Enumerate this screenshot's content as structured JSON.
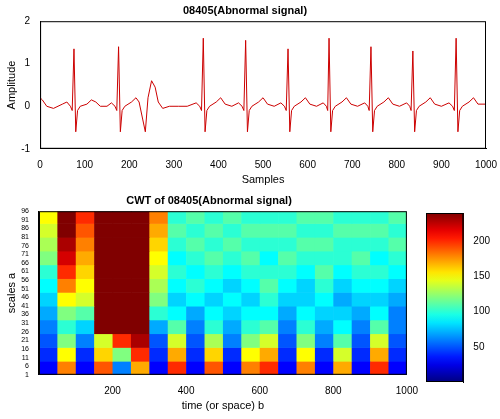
{
  "chart_data": [
    {
      "type": "line",
      "title": "08405(Abnormal signal)",
      "xlabel": "Samples",
      "ylabel": "Amplitude",
      "color": "#cc0000",
      "grid": false,
      "xlim": [
        0,
        1000
      ],
      "xticks": [
        0,
        100,
        200,
        300,
        400,
        500,
        600,
        700,
        800,
        900,
        1000
      ],
      "ylim": [
        -1,
        2
      ],
      "yticks": [
        -1,
        0,
        1,
        2
      ],
      "x": [
        0,
        5,
        15,
        30,
        50,
        60,
        68,
        72,
        76,
        80,
        84,
        90,
        105,
        115,
        125,
        135,
        150,
        160,
        168,
        172,
        176,
        180,
        184,
        190,
        205,
        215,
        222,
        230,
        236,
        242,
        250,
        258,
        265,
        275,
        290,
        310,
        330,
        350,
        358,
        362,
        366,
        370,
        374,
        380,
        395,
        405,
        415,
        430,
        445,
        453,
        457,
        461,
        465,
        469,
        475,
        490,
        500,
        510,
        525,
        540,
        548,
        552,
        556,
        560,
        564,
        570,
        585,
        595,
        605,
        620,
        635,
        642,
        645,
        648,
        652,
        656,
        662,
        677,
        687,
        697,
        712,
        728,
        735,
        738,
        742,
        746,
        750,
        756,
        771,
        781,
        791,
        806,
        822,
        829,
        832,
        836,
        840,
        844,
        850,
        865,
        875,
        885,
        900,
        917,
        925,
        929,
        933,
        937,
        941,
        947,
        962,
        972,
        982,
        1000
      ],
      "values": [
        0.2,
        0.15,
        0.0,
        -0.05,
        0.05,
        0.1,
        0.0,
        -0.1,
        1.35,
        -0.6,
        -0.1,
        0.0,
        0.05,
        0.15,
        0.1,
        0.0,
        0.0,
        0.08,
        0.0,
        -0.1,
        1.4,
        -0.6,
        -0.1,
        0.0,
        0.1,
        0.2,
        0.1,
        -0.3,
        -0.6,
        0.2,
        0.6,
        0.45,
        0.1,
        -0.05,
        0.0,
        0.0,
        0.0,
        0.08,
        0.0,
        -0.1,
        1.6,
        -0.6,
        -0.1,
        0.0,
        0.1,
        0.2,
        0.05,
        0.0,
        0.08,
        0.0,
        -0.1,
        1.55,
        -0.6,
        -0.1,
        0.0,
        0.1,
        0.2,
        0.05,
        0.0,
        0.08,
        0.0,
        -0.1,
        1.35,
        -0.6,
        -0.1,
        0.0,
        0.1,
        0.2,
        0.05,
        0.0,
        0.08,
        0.0,
        -0.1,
        1.6,
        -0.6,
        -0.1,
        0.0,
        0.1,
        0.2,
        0.05,
        0.0,
        0.08,
        0.0,
        -0.1,
        1.4,
        -0.6,
        -0.1,
        0.0,
        0.1,
        0.2,
        0.05,
        0.0,
        0.08,
        0.0,
        -0.1,
        1.3,
        -0.6,
        -0.1,
        0.0,
        0.1,
        0.2,
        0.05,
        0.0,
        0.08,
        0.0,
        -0.1,
        1.6,
        -0.6,
        -0.1,
        0.0,
        0.1,
        0.2,
        0.05,
        0.05
      ]
    },
    {
      "type": "heatmap",
      "title": "CWT of 08405(Abnormal signal)",
      "xlabel": "time (or space) b",
      "ylabel": "scales a",
      "xlim": [
        0,
        1000
      ],
      "xticks": [
        200,
        400,
        600,
        800,
        1000
      ],
      "ylim": [
        1,
        96
      ],
      "yticks": [
        1,
        6,
        11,
        16,
        21,
        26,
        31,
        36,
        41,
        46,
        51,
        56,
        61,
        66,
        71,
        76,
        81,
        86,
        91,
        96
      ],
      "x_edges": [
        0,
        50,
        100,
        150,
        200,
        250,
        300,
        350,
        400,
        450,
        500,
        550,
        600,
        650,
        700,
        750,
        800,
        850,
        900,
        950,
        1000
      ],
      "y_edges": [
        1,
        9,
        17,
        25,
        33,
        41,
        49,
        57,
        65,
        73,
        81,
        89,
        96
      ],
      "cells": [
        [
          30,
          180,
          30,
          190,
          60,
          170,
          30,
          200,
          30,
          190,
          30,
          180,
          200,
          30,
          180,
          30,
          170,
          30,
          200,
          30
        ],
        [
          40,
          150,
          40,
          160,
          120,
          200,
          40,
          170,
          40,
          160,
          40,
          150,
          170,
          40,
          150,
          40,
          140,
          40,
          170,
          40
        ],
        [
          50,
          120,
          60,
          140,
          200,
          230,
          50,
          140,
          50,
          130,
          60,
          120,
          140,
          50,
          120,
          60,
          110,
          50,
          140,
          50
        ],
        [
          60,
          100,
          80,
          240,
          240,
          240,
          70,
          110,
          60,
          100,
          70,
          100,
          110,
          60,
          100,
          70,
          90,
          60,
          110,
          60
        ],
        [
          70,
          120,
          110,
          240,
          240,
          240,
          100,
          90,
          70,
          90,
          80,
          90,
          90,
          70,
          90,
          80,
          80,
          70,
          90,
          60
        ],
        [
          80,
          150,
          140,
          240,
          240,
          240,
          120,
          80,
          90,
          80,
          90,
          80,
          100,
          80,
          80,
          90,
          70,
          80,
          80,
          70
        ],
        [
          90,
          180,
          150,
          240,
          240,
          240,
          130,
          90,
          100,
          90,
          80,
          90,
          110,
          90,
          80,
          100,
          80,
          90,
          90,
          80
        ],
        [
          100,
          200,
          160,
          240,
          240,
          240,
          140,
          100,
          90,
          100,
          90,
          100,
          100,
          100,
          90,
          110,
          90,
          100,
          100,
          90
        ],
        [
          120,
          220,
          170,
          240,
          240,
          240,
          150,
          90,
          100,
          110,
          100,
          110,
          90,
          110,
          100,
          100,
          100,
          110,
          90,
          100
        ],
        [
          130,
          230,
          180,
          240,
          240,
          240,
          160,
          100,
          110,
          100,
          110,
          100,
          100,
          100,
          110,
          110,
          100,
          100,
          100,
          110
        ],
        [
          140,
          240,
          190,
          240,
          240,
          240,
          170,
          110,
          100,
          110,
          100,
          110,
          110,
          110,
          100,
          100,
          110,
          110,
          110,
          100
        ],
        [
          150,
          240,
          200,
          240,
          240,
          240,
          180,
          100,
          110,
          100,
          110,
          100,
          100,
          100,
          110,
          110,
          100,
          100,
          100,
          110
        ]
      ],
      "colorbar": {
        "range": [
          0,
          240
        ],
        "ticks": [
          50,
          100,
          150,
          200
        ]
      }
    }
  ]
}
